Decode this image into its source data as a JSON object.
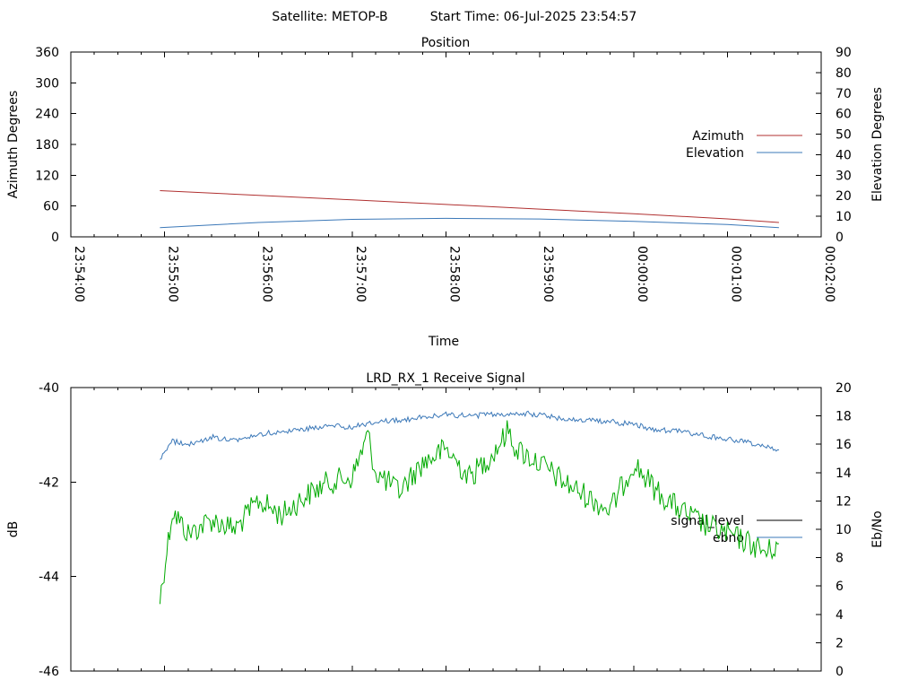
{
  "header": {
    "satellite_label": "Satellite: METOP-B",
    "start_time_label": "Start Time: 06-Jul-2025 23:54:57"
  },
  "colors": {
    "azimuth": "#b03030",
    "elevation": "#3b78b8",
    "signal_level": "#00aa00",
    "ebno": "#3b78b8",
    "axis": "#000000",
    "background": "#ffffff"
  },
  "chart_data": [
    {
      "type": "line",
      "title": "Position",
      "xlabel": "Time",
      "ylabel": "Azimuth Degrees",
      "y2label": "Elevation Degrees",
      "xlim": [
        "23:54:00",
        "00:02:00"
      ],
      "ylim": [
        0,
        360
      ],
      "y2lim": [
        0,
        90
      ],
      "xticks": [
        "23:54:00",
        "23:55:00",
        "23:56:00",
        "23:57:00",
        "23:58:00",
        "23:59:00",
        "00:00:00",
        "00:01:00",
        "00:02:00"
      ],
      "yticks": [
        "0",
        "60",
        "120",
        "180",
        "240",
        "300",
        "360"
      ],
      "y2ticks": [
        "0",
        "10",
        "20",
        "30",
        "40",
        "50",
        "60",
        "70",
        "80",
        "90"
      ],
      "grid": false,
      "legend": "right-upper",
      "series": [
        {
          "name": "Azimuth",
          "axis": "y",
          "x": [
            "23:54:57",
            "23:56:00",
            "23:57:00",
            "23:58:00",
            "23:59:00",
            "00:00:00",
            "00:01:00",
            "00:01:33"
          ],
          "values": [
            90,
            81,
            72,
            63,
            54,
            45,
            35,
            28
          ]
        },
        {
          "name": "Elevation",
          "axis": "y2",
          "x": [
            "23:54:57",
            "23:56:00",
            "23:57:00",
            "23:58:00",
            "23:59:00",
            "00:00:00",
            "00:01:00",
            "00:01:33"
          ],
          "values": [
            4.5,
            7,
            8.5,
            9,
            8.7,
            7.5,
            6,
            4.5
          ]
        }
      ]
    },
    {
      "type": "line",
      "title": "LRD_RX_1 Receive Signal",
      "ylabel": "dB",
      "y2label": "Eb/No",
      "xlim": [
        "23:54:00",
        "00:02:00"
      ],
      "ylim": [
        -46,
        -40
      ],
      "y2lim": [
        0,
        20
      ],
      "yticks": [
        "-40",
        "-42",
        "-44",
        "-46"
      ],
      "y2ticks": [
        "0",
        "2",
        "4",
        "6",
        "8",
        "10",
        "12",
        "14",
        "16",
        "18",
        "20"
      ],
      "grid": false,
      "legend": "right-middle",
      "series": [
        {
          "name": "signal_level",
          "axis": "y",
          "x": [
            "23:54:57",
            "23:55:05",
            "23:55:15",
            "23:55:30",
            "23:55:45",
            "23:56:00",
            "23:56:15",
            "23:56:30",
            "23:56:45",
            "23:57:00",
            "23:57:10",
            "23:57:15",
            "23:57:30",
            "23:57:45",
            "23:58:00",
            "23:58:15",
            "23:58:30",
            "23:58:40",
            "23:58:45",
            "23:59:00",
            "23:59:15",
            "23:59:30",
            "23:59:45",
            "00:00:00",
            "00:00:15",
            "00:00:30",
            "00:00:45",
            "00:01:00",
            "00:01:15",
            "00:01:25",
            "00:01:33"
          ],
          "values": [
            -44.5,
            -42.6,
            -43.1,
            -42.8,
            -43.0,
            -42.4,
            -42.7,
            -42.3,
            -42.0,
            -41.9,
            -41.0,
            -41.8,
            -42.2,
            -41.6,
            -41.3,
            -41.9,
            -41.4,
            -40.9,
            -41.3,
            -41.6,
            -42.0,
            -42.3,
            -42.6,
            -41.6,
            -42.2,
            -42.6,
            -42.9,
            -43.1,
            -43.3,
            -43.5,
            -43.3
          ]
        },
        {
          "name": "ebno",
          "axis": "y2",
          "x": [
            "23:54:57",
            "23:55:05",
            "23:55:15",
            "23:55:30",
            "23:55:45",
            "23:56:00",
            "23:56:15",
            "23:56:30",
            "23:56:45",
            "23:57:00",
            "23:57:15",
            "23:57:30",
            "23:57:45",
            "23:58:00",
            "23:58:15",
            "23:58:30",
            "23:58:45",
            "23:59:00",
            "23:59:15",
            "23:59:30",
            "23:59:45",
            "00:00:00",
            "00:00:15",
            "00:00:30",
            "00:00:45",
            "00:01:00",
            "00:01:15",
            "00:01:25",
            "00:01:33"
          ],
          "values": [
            15.0,
            16.2,
            16.0,
            16.5,
            16.3,
            16.7,
            16.9,
            17.1,
            17.3,
            17.2,
            17.6,
            17.7,
            17.9,
            18.1,
            18.0,
            18.1,
            18.2,
            18.1,
            17.8,
            17.7,
            17.6,
            17.4,
            17.0,
            16.9,
            16.6,
            16.4,
            16.1,
            15.8,
            15.6
          ]
        }
      ]
    }
  ]
}
